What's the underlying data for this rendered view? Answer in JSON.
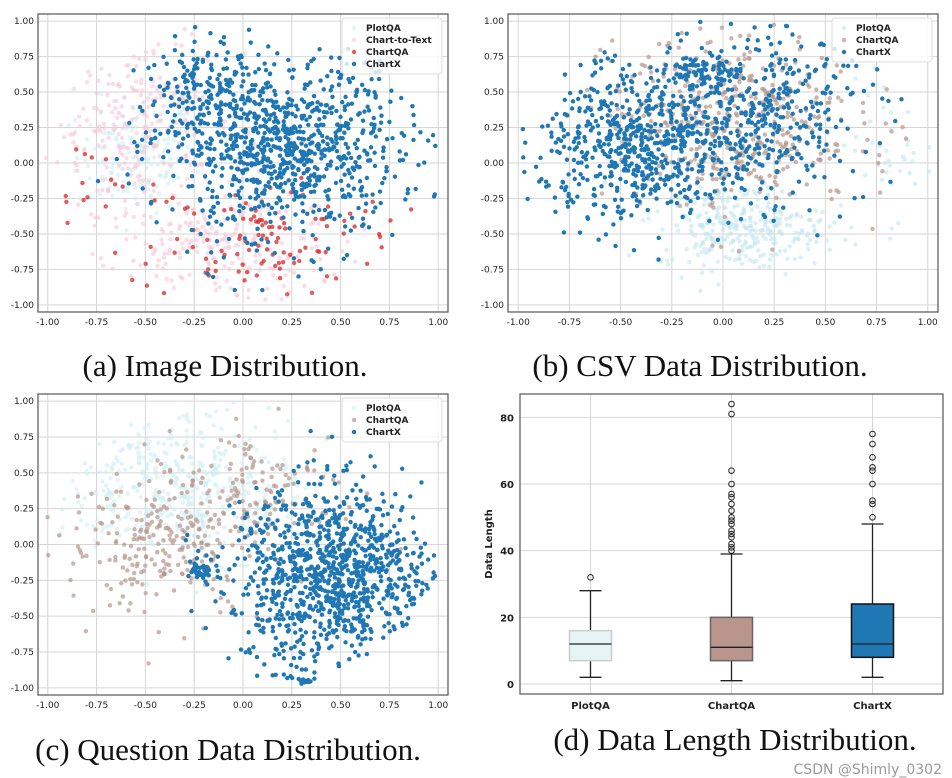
{
  "watermark": "CSDN @Shimly_0302",
  "chart_data": [
    {
      "type": "scatter",
      "caption": "(a) Image Distribution.",
      "xlim": [
        -1.05,
        1.05
      ],
      "ylim": [
        -1.05,
        1.05
      ],
      "xticks": [
        -1.0,
        -0.75,
        -0.5,
        -0.25,
        0.0,
        0.25,
        0.5,
        0.75,
        1.0
      ],
      "yticks": [
        -1.0,
        -0.75,
        -0.5,
        -0.25,
        0.0,
        0.25,
        0.5,
        0.75,
        1.0
      ],
      "legend": "top-right",
      "series": [
        {
          "name": "PlotQA",
          "color": "#cdeef2",
          "opacity": 0.6,
          "clusters": [
            {
              "c": [
                -0.55,
                0.05
              ],
              "s": [
                0.15,
                0.2
              ],
              "n": 150
            }
          ]
        },
        {
          "name": "Chart-to-Text",
          "color": "#f6c6d8",
          "opacity": 0.6,
          "clusters": [
            {
              "c": [
                -0.5,
                0.25
              ],
              "s": [
                0.25,
                0.3
              ],
              "n": 250
            },
            {
              "c": [
                -0.1,
                -0.6
              ],
              "s": [
                0.3,
                0.2
              ],
              "n": 200
            }
          ]
        },
        {
          "name": "ChartQA",
          "color": "#d62728",
          "opacity": 0.75,
          "clusters": [
            {
              "c": [
                0.1,
                -0.5
              ],
              "s": [
                0.35,
                0.22
              ],
              "n": 110
            },
            {
              "c": [
                -0.8,
                -0.1
              ],
              "s": [
                0.1,
                0.15
              ],
              "n": 12
            }
          ]
        },
        {
          "name": "ChartX",
          "color": "#1f77b4",
          "opacity": 1,
          "clusters": [
            {
              "c": [
                0.2,
                0.1
              ],
              "s": [
                0.3,
                0.3
              ],
              "n": 900
            },
            {
              "c": [
                -0.2,
                0.5
              ],
              "s": [
                0.15,
                0.2
              ],
              "n": 150
            }
          ]
        }
      ]
    },
    {
      "type": "scatter",
      "caption": "(b) CSV Data Distribution.",
      "xlim": [
        -1.05,
        1.05
      ],
      "ylim": [
        -1.05,
        1.05
      ],
      "xticks": [
        -1.0,
        -0.75,
        -0.5,
        -0.25,
        0.0,
        0.25,
        0.5,
        0.75,
        1.0
      ],
      "yticks": [
        -1.0,
        -0.75,
        -0.5,
        -0.25,
        0.0,
        0.25,
        0.5,
        0.75,
        1.0
      ],
      "legend": "top-right",
      "series": [
        {
          "name": "PlotQA",
          "color": "#bfe6ec",
          "opacity": 0.6,
          "clusters": [
            {
              "c": [
                0.1,
                -0.45
              ],
              "s": [
                0.2,
                0.15
              ],
              "n": 300
            },
            {
              "c": [
                0.8,
                0.1
              ],
              "s": [
                0.1,
                0.25
              ],
              "n": 40
            }
          ]
        },
        {
          "name": "ChartQA",
          "color": "#b5958c",
          "opacity": 0.7,
          "clusters": [
            {
              "c": [
                0.05,
                0.3
              ],
              "s": [
                0.3,
                0.3
              ],
              "n": 450
            }
          ]
        },
        {
          "name": "ChartX",
          "color": "#1f77b4",
          "opacity": 1,
          "clusters": [
            {
              "c": [
                -0.45,
                0.1
              ],
              "s": [
                0.22,
                0.25
              ],
              "n": 500
            },
            {
              "c": [
                0.1,
                0.3
              ],
              "s": [
                0.3,
                0.3
              ],
              "n": 500
            },
            {
              "c": [
                -0.1,
                0.65
              ],
              "s": [
                0.08,
                0.05
              ],
              "n": 60
            }
          ]
        }
      ]
    },
    {
      "type": "scatter",
      "caption": "(c) Question Data Distribution.",
      "xlim": [
        -1.05,
        1.05
      ],
      "ylim": [
        -1.05,
        1.05
      ],
      "xticks": [
        -1.0,
        -0.75,
        -0.5,
        -0.25,
        0.0,
        0.25,
        0.5,
        0.75,
        1.0
      ],
      "yticks": [
        -1.0,
        -0.75,
        -0.5,
        -0.25,
        0.0,
        0.25,
        0.5,
        0.75,
        1.0
      ],
      "legend": "top-right",
      "series": [
        {
          "name": "PlotQA",
          "color": "#cdeef2",
          "opacity": 0.6,
          "clusters": [
            {
              "c": [
                -0.3,
                0.4
              ],
              "s": [
                0.3,
                0.25
              ],
              "n": 450
            }
          ]
        },
        {
          "name": "ChartQA",
          "color": "#b5958c",
          "opacity": 0.7,
          "clusters": [
            {
              "c": [
                -0.4,
                0.0
              ],
              "s": [
                0.25,
                0.25
              ],
              "n": 250
            },
            {
              "c": [
                0.1,
                0.4
              ],
              "s": [
                0.25,
                0.2
              ],
              "n": 120
            }
          ]
        },
        {
          "name": "ChartX",
          "color": "#1f77b4",
          "opacity": 1,
          "clusters": [
            {
              "c": [
                0.45,
                -0.2
              ],
              "s": [
                0.25,
                0.3
              ],
              "n": 1000
            },
            {
              "c": [
                -0.22,
                -0.2
              ],
              "s": [
                0.04,
                0.04
              ],
              "n": 40
            },
            {
              "c": [
                0.33,
                -0.97
              ],
              "s": [
                0.03,
                0.03
              ],
              "n": 25
            }
          ]
        }
      ]
    },
    {
      "type": "box",
      "caption": "(d) Data Length Distribution.",
      "ylabel": "Data Length",
      "ylim": [
        -3,
        87
      ],
      "yticks": [
        0,
        20,
        40,
        60,
        80
      ],
      "categories": [
        "PlotQA",
        "ChartQA",
        "ChartX"
      ],
      "boxes": [
        {
          "name": "PlotQA",
          "color": "#e6f4f6",
          "edge": "#ccc",
          "whislo": 2,
          "q1": 7,
          "med": 12,
          "q3": 16,
          "whishi": 28,
          "fliers": [
            32
          ]
        },
        {
          "name": "ChartQA",
          "color": "#b9958c",
          "edge": "#666",
          "whislo": 1,
          "q1": 7,
          "med": 11,
          "q3": 20,
          "whishi": 39,
          "fliers": [
            40,
            41,
            42,
            44,
            45,
            46,
            48,
            49,
            50,
            52,
            54,
            56,
            57,
            60,
            64,
            81,
            84
          ]
        },
        {
          "name": "ChartX",
          "color": "#1f77b4",
          "edge": "#111",
          "whislo": 2,
          "q1": 8,
          "med": 12,
          "q3": 24,
          "whishi": 48,
          "fliers": [
            50,
            54,
            55,
            60,
            64,
            65,
            68,
            72,
            75
          ]
        }
      ]
    }
  ]
}
